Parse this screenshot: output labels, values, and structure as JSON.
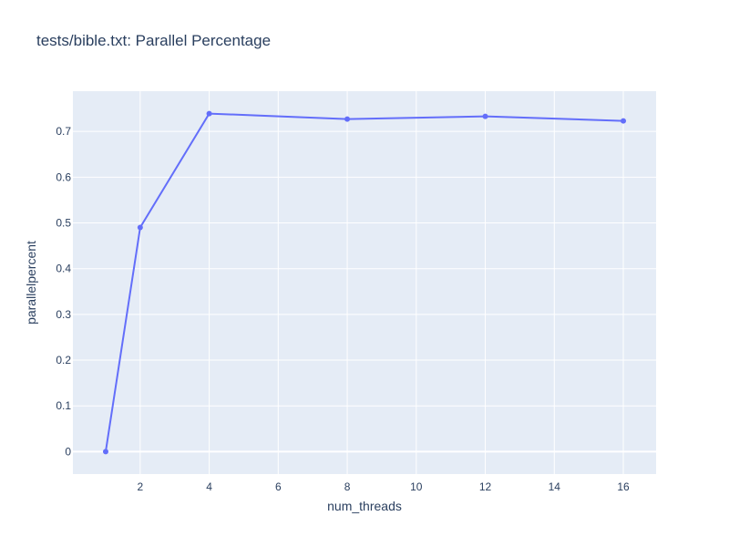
{
  "chart_data": {
    "type": "line",
    "title": "tests/bible.txt: Parallel Percentage",
    "xlabel": "num_threads",
    "ylabel": "parallelpercent",
    "x": [
      1,
      2,
      4,
      8,
      12,
      16
    ],
    "series": [
      {
        "values": [
          0,
          0.49,
          0.739,
          0.727,
          0.733,
          0.723
        ]
      }
    ],
    "xlim": [
      0.05,
      16.95
    ],
    "ylim": [
      -0.049,
      0.788
    ],
    "xticks": [
      2,
      4,
      6,
      8,
      10,
      12,
      14,
      16
    ],
    "xtick_labels": [
      "2",
      "4",
      "6",
      "8",
      "10",
      "12",
      "14",
      "16"
    ],
    "yticks": [
      0,
      0.1,
      0.2,
      0.3,
      0.4,
      0.5,
      0.6,
      0.7
    ],
    "ytick_labels": [
      "0",
      "0.1",
      "0.2",
      "0.3",
      "0.4",
      "0.5",
      "0.6",
      "0.7"
    ],
    "grid": true,
    "colors": {
      "line": "#636efa",
      "plot_bg": "#e5ecf6",
      "grid": "#ffffff"
    }
  }
}
